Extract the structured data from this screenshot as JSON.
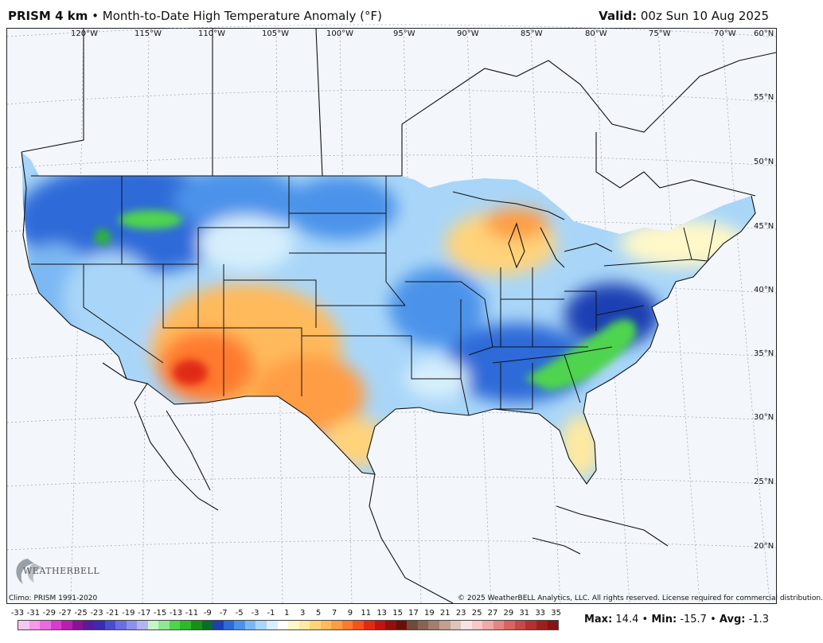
{
  "header": {
    "product": "PRISM 4 km",
    "bullet": "•",
    "subtitle": "Month-to-Date High Temperature Anomaly (°F)",
    "valid_label": "Valid:",
    "valid_value": "00z Sun 10 Aug 2025"
  },
  "longitudes": [
    "120°W",
    "115°W",
    "110°W",
    "105°W",
    "100°W",
    "95°W",
    "90°W",
    "85°W",
    "80°W",
    "75°W",
    "70°W"
  ],
  "latitudes": [
    "60°N",
    "55°N",
    "50°N",
    "45°N",
    "40°N",
    "35°N",
    "30°N",
    "25°N",
    "20°N"
  ],
  "footer": {
    "climo": "Climo: PRISM 1991-2020",
    "copyright": "© 2025 WeatherBELL Analytics, LLC. All rights reserved. License required for commercial distribution."
  },
  "logo": {
    "text": "WEATHERBELL",
    "icon": "swirl-logo-icon"
  },
  "legend": {
    "labels": [
      "-33",
      "-31",
      "-29",
      "-27",
      "-25",
      "-23",
      "-21",
      "-19",
      "-17",
      "-15",
      "-13",
      "-11",
      "-9",
      "-7",
      "-5",
      "-3",
      "-1",
      "1",
      "3",
      "5",
      "7",
      "9",
      "11",
      "13",
      "15",
      "17",
      "19",
      "21",
      "23",
      "25",
      "27",
      "29",
      "31",
      "33",
      "35"
    ],
    "colors": [
      "#f9c6f4",
      "#f39aea",
      "#e96cde",
      "#d83ccd",
      "#b81fae",
      "#8c1194",
      "#5a1a9a",
      "#3a2bb0",
      "#4a4ccf",
      "#6a6ee0",
      "#8c91ea",
      "#b2b6f0",
      "#c7f5c7",
      "#8fe88f",
      "#4fd44f",
      "#2db82d",
      "#188f18",
      "#0b6b2a",
      "#1c3fb3",
      "#2e6ad8",
      "#4b93ea",
      "#7bb8f3",
      "#a9d6f8",
      "#d7effc",
      "#ffffff",
      "#fff8c8",
      "#ffe9a0",
      "#ffd37a",
      "#ffba5c",
      "#ff9d44",
      "#ff7a2d",
      "#f4531f",
      "#e02b14",
      "#c0140f",
      "#94100b",
      "#6b0d08",
      "#6e4b3a",
      "#8a6252",
      "#a57d6c",
      "#c49e90",
      "#e0c4bb",
      "#f6e2e0",
      "#f7c8c8",
      "#f0a8a8",
      "#e68585",
      "#d86464",
      "#c84848",
      "#b53030",
      "#9e1f1f",
      "#861414"
    ]
  },
  "stats": {
    "max_label": "Max:",
    "max_value": "14.4",
    "min_label": "Min:",
    "min_value": "-15.7",
    "avg_label": "Avg:",
    "avg_value": "-1.3",
    "sep": "•"
  }
}
